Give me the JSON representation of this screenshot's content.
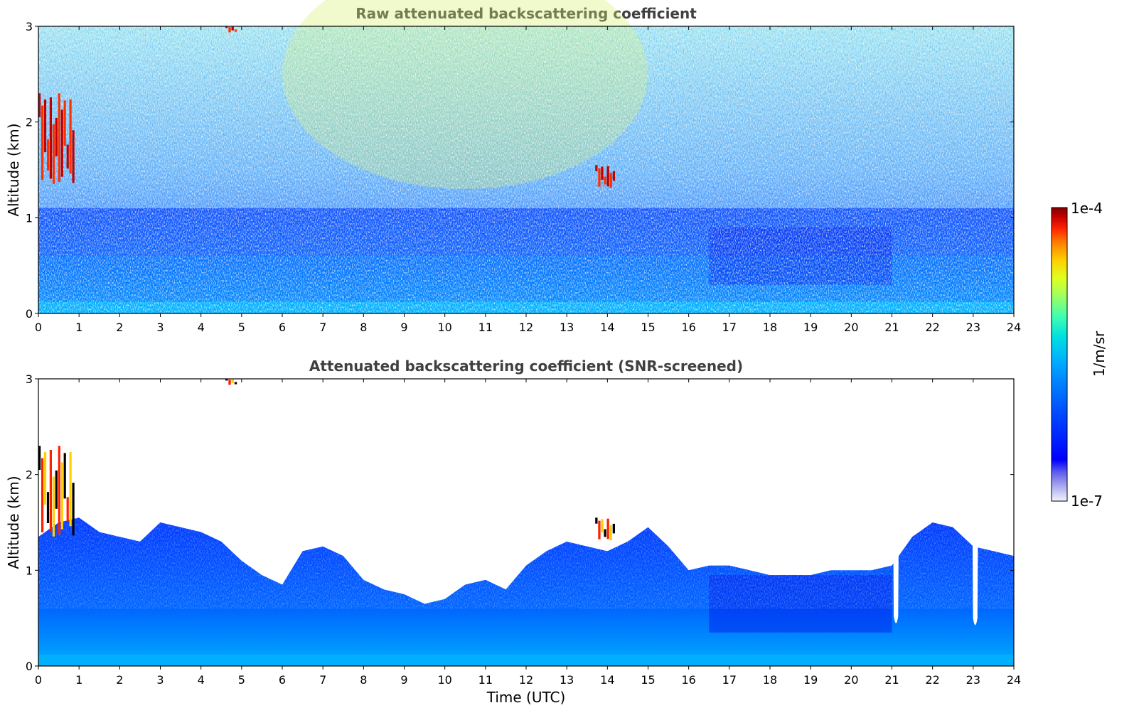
{
  "chart_data": [
    {
      "type": "heatmap",
      "title": "Raw attenuated backscattering coefficient",
      "xlabel": "",
      "ylabel": "Altitude (km)",
      "xlim": [
        0,
        24
      ],
      "ylim": [
        0,
        3
      ],
      "x_ticks": [
        "0",
        "1",
        "2",
        "3",
        "4",
        "5",
        "6",
        "7",
        "8",
        "9",
        "10",
        "11",
        "12",
        "13",
        "14",
        "15",
        "16",
        "17",
        "18",
        "19",
        "20",
        "21",
        "22",
        "23",
        "24"
      ],
      "y_ticks": [
        "0",
        "1",
        "2",
        "3"
      ],
      "screened": false,
      "features": [
        {
          "label": "boundary layer aerosol",
          "x_range": [
            0,
            24
          ],
          "y_range": [
            0,
            0.6
          ]
        },
        {
          "label": "cloud",
          "x_range": [
            0.0,
            0.9
          ],
          "y_range": [
            1.3,
            2.3
          ]
        },
        {
          "label": "cloud",
          "x_range": [
            4.6,
            4.9
          ],
          "y_range": [
            2.93,
            3.0
          ]
        },
        {
          "label": "cloud",
          "x_range": [
            13.7,
            14.2
          ],
          "y_range": [
            1.3,
            1.55
          ]
        }
      ]
    },
    {
      "type": "heatmap",
      "title": "Attenuated backscattering coefficient (SNR-screened)",
      "xlabel": "Time (UTC)",
      "ylabel": "Altitude (km)",
      "xlim": [
        0,
        24
      ],
      "ylim": [
        0,
        3
      ],
      "x_ticks": [
        "0",
        "1",
        "2",
        "3",
        "4",
        "5",
        "6",
        "7",
        "8",
        "9",
        "10",
        "11",
        "12",
        "13",
        "14",
        "15",
        "16",
        "17",
        "18",
        "19",
        "20",
        "21",
        "22",
        "23",
        "24"
      ],
      "y_ticks": [
        "0",
        "1",
        "2",
        "3"
      ],
      "screened": true,
      "layer_top_km": [
        [
          0,
          1.35
        ],
        [
          0.5,
          1.5
        ],
        [
          1,
          1.55
        ],
        [
          1.5,
          1.4
        ],
        [
          2,
          1.35
        ],
        [
          2.5,
          1.3
        ],
        [
          3,
          1.5
        ],
        [
          3.5,
          1.45
        ],
        [
          4,
          1.4
        ],
        [
          4.5,
          1.3
        ],
        [
          5,
          1.1
        ],
        [
          5.5,
          0.95
        ],
        [
          6,
          0.85
        ],
        [
          6.5,
          1.2
        ],
        [
          7,
          1.25
        ],
        [
          7.5,
          1.15
        ],
        [
          8,
          0.9
        ],
        [
          8.5,
          0.8
        ],
        [
          9,
          0.75
        ],
        [
          9.5,
          0.65
        ],
        [
          10,
          0.7
        ],
        [
          10.5,
          0.85
        ],
        [
          11,
          0.9
        ],
        [
          11.5,
          0.8
        ],
        [
          12,
          1.05
        ],
        [
          12.5,
          1.2
        ],
        [
          13,
          1.3
        ],
        [
          13.5,
          1.25
        ],
        [
          14,
          1.2
        ],
        [
          14.5,
          1.3
        ],
        [
          15,
          1.45
        ],
        [
          15.5,
          1.25
        ],
        [
          16,
          1.0
        ],
        [
          16.5,
          1.05
        ],
        [
          17,
          1.05
        ],
        [
          17.5,
          1.0
        ],
        [
          18,
          0.95
        ],
        [
          18.5,
          0.95
        ],
        [
          19,
          0.95
        ],
        [
          19.5,
          1.0
        ],
        [
          20,
          1.0
        ],
        [
          20.5,
          1.0
        ],
        [
          21,
          1.05
        ],
        [
          21.5,
          1.35
        ],
        [
          22,
          1.5
        ],
        [
          22.5,
          1.45
        ],
        [
          23,
          1.25
        ],
        [
          23.5,
          1.2
        ],
        [
          24,
          1.15
        ]
      ],
      "gaps": [
        {
          "x": 21.1,
          "width_h": 0.18,
          "bottom_km": 0.42
        },
        {
          "x": 23.05,
          "width_h": 0.18,
          "bottom_km": 0.4
        }
      ],
      "features": [
        {
          "label": "cloud",
          "x_range": [
            0.0,
            0.9
          ],
          "y_range": [
            1.3,
            2.3
          ]
        },
        {
          "label": "cloud",
          "x_range": [
            4.6,
            4.9
          ],
          "y_range": [
            2.93,
            3.0
          ]
        },
        {
          "label": "cloud",
          "x_range": [
            13.7,
            14.2
          ],
          "y_range": [
            1.3,
            1.55
          ]
        }
      ]
    }
  ],
  "colorbar": {
    "label": "1/m/sr",
    "max_label": "1e-4",
    "min_label": "1e-7",
    "scale": "log",
    "range": [
      1e-07,
      0.0001
    ],
    "colors": [
      "#f2f2ff",
      "#c8c8f5",
      "#9b9bee",
      "#5a5aee",
      "#0000ff",
      "#0040ff",
      "#0080ff",
      "#00b0ff",
      "#00e0e0",
      "#40ffb0",
      "#a0ff60",
      "#e0ff20",
      "#ffd000",
      "#ff8000",
      "#ff2000",
      "#c00000",
      "#800000"
    ]
  }
}
